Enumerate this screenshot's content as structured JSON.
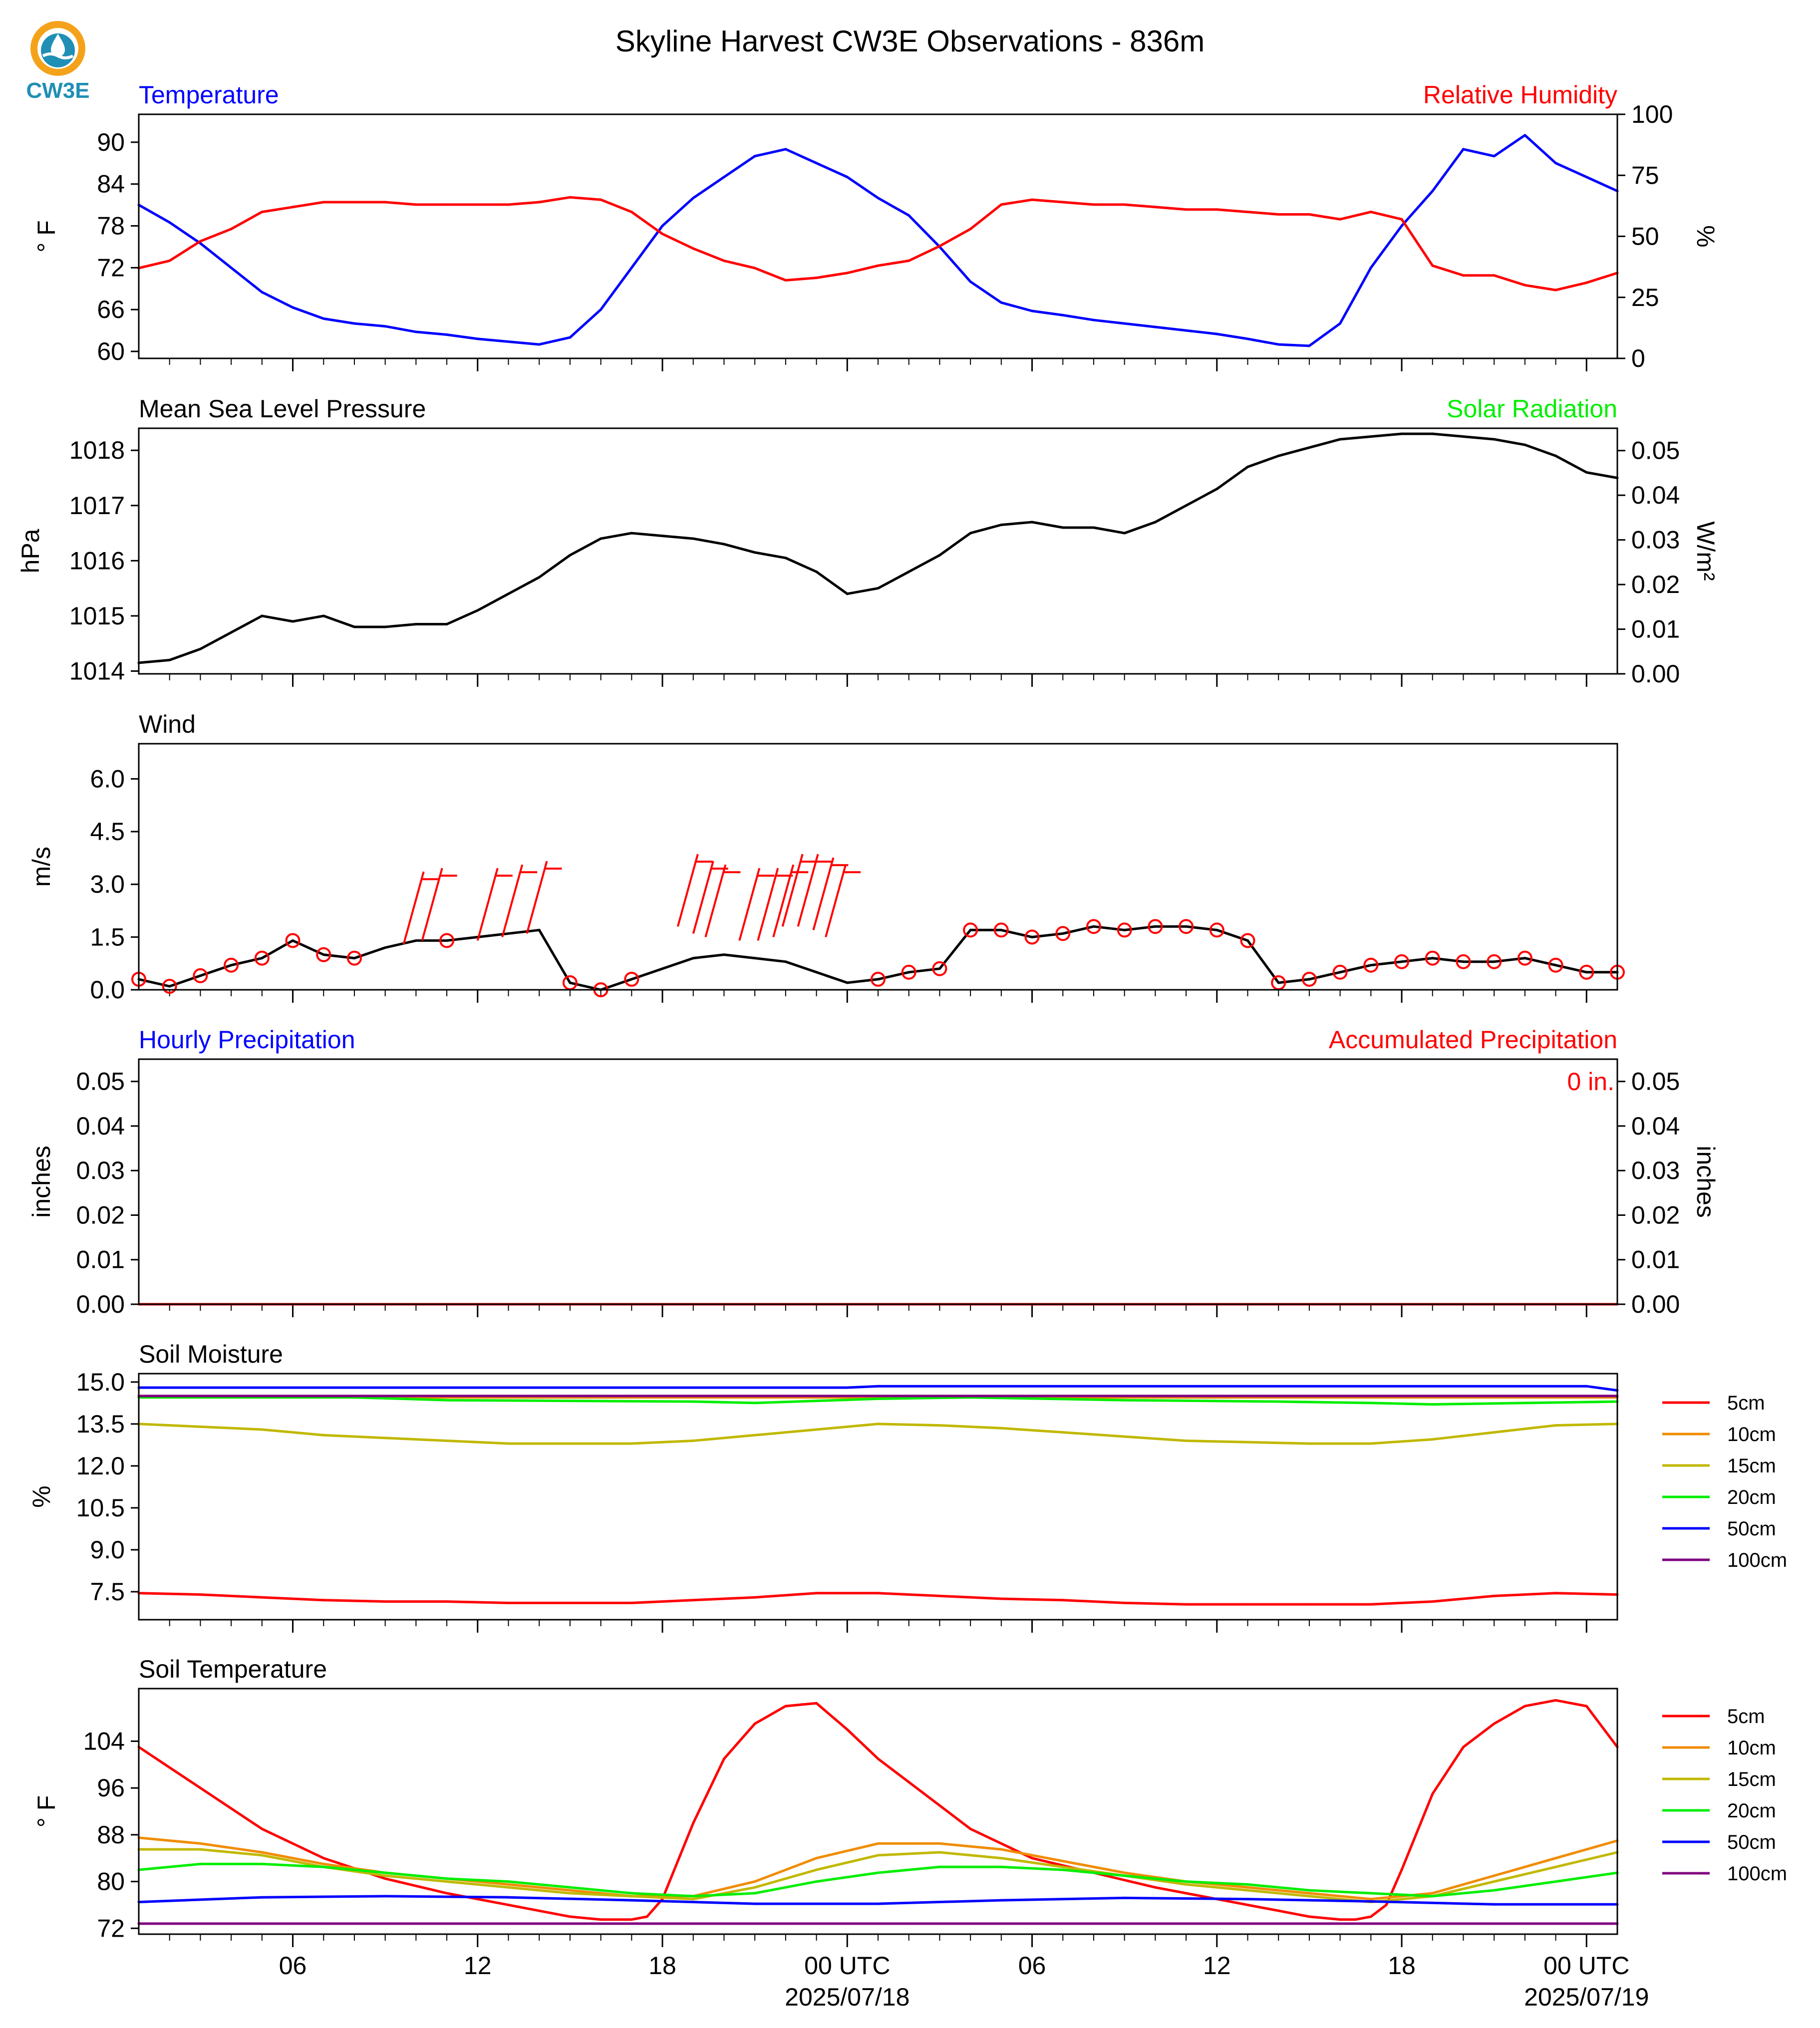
{
  "title": "Skyline Harvest CW3E Observations - 836m",
  "logo": {
    "text": "CW3E",
    "colors": {
      "orange": "#f5a21b",
      "teal": "#1f8fb5"
    }
  },
  "colors": {
    "temperature": "#0000ff",
    "humidity": "#ff0000",
    "solar": "#00ee00",
    "black": "#000000",
    "accum": "#ff0000",
    "hourly": "#0000ff"
  },
  "time_axis": {
    "x_range": [
      "2025-07-17T01:00Z",
      "2025-07-19T01:00Z"
    ],
    "tick_labels": [
      "06",
      "12",
      "18",
      "00 UTC",
      "06",
      "12",
      "18",
      "00 UTC"
    ],
    "date_labels": [
      "2025/07/18",
      "2025/07/19"
    ]
  },
  "chart_data": [
    {
      "id": "temp_rh",
      "type": "line",
      "left_title": "Temperature",
      "right_title": "Relative Humidity",
      "ylabel": "° F",
      "ylabel_right": "%",
      "ylim": [
        59,
        94
      ],
      "ylim_right": [
        0,
        100
      ],
      "y_ticks": [
        "60",
        "66",
        "72",
        "78",
        "84",
        "90"
      ],
      "y_ticks_right": [
        "0",
        "25",
        "50",
        "75",
        "100"
      ],
      "series": [
        {
          "name": "Temperature",
          "color": "#0000ff",
          "axis": "left",
          "x": [
            1,
            2,
            3,
            4,
            5,
            6,
            7,
            8,
            9,
            10,
            11,
            12,
            13,
            14,
            15,
            16,
            17,
            18,
            19,
            20,
            21,
            22,
            23,
            24,
            25,
            26,
            27,
            28,
            29,
            30,
            31,
            32,
            33,
            34,
            35,
            36,
            37,
            38,
            39,
            40,
            41,
            42,
            43,
            44,
            45,
            46,
            47,
            48,
            49
          ],
          "y": [
            81,
            78.5,
            75.5,
            72,
            68.5,
            66.3,
            64.7,
            64,
            63.6,
            62.8,
            62.4,
            61.8,
            61.4,
            61,
            62,
            66,
            72,
            78,
            82,
            85,
            88,
            89,
            87,
            85,
            82,
            79.5,
            75,
            70,
            67,
            65.8,
            65.2,
            64.5,
            64,
            63.5,
            63,
            62.5,
            61.8,
            61,
            60.8,
            64,
            72,
            78,
            83,
            89,
            88,
            91,
            87,
            85,
            83
          ]
        },
        {
          "name": "Relative Humidity",
          "color": "#ff0000",
          "axis": "right",
          "x": [
            1,
            2,
            3,
            4,
            5,
            6,
            7,
            8,
            9,
            10,
            11,
            12,
            13,
            14,
            15,
            16,
            17,
            18,
            19,
            20,
            21,
            22,
            23,
            24,
            25,
            26,
            27,
            28,
            29,
            30,
            31,
            32,
            33,
            34,
            35,
            36,
            37,
            38,
            39,
            40,
            41,
            42,
            43,
            44,
            45,
            46,
            47,
            48,
            49
          ],
          "y": [
            37,
            40,
            48,
            53,
            60,
            62,
            64,
            64,
            64,
            63,
            63,
            63,
            63,
            64,
            66,
            65,
            60,
            51,
            45,
            40,
            37,
            32,
            33,
            35,
            38,
            40,
            46,
            53,
            63,
            65,
            64,
            63,
            63,
            62,
            61,
            61,
            60,
            59,
            59,
            57,
            60,
            57,
            38,
            34,
            34,
            30,
            28,
            31,
            35
          ]
        }
      ]
    },
    {
      "id": "pressure",
      "type": "line",
      "left_title": "Mean Sea Level Pressure",
      "right_title": "Solar Radiation",
      "ylabel": "hPa",
      "ylabel_right": "W/m²",
      "ylim": [
        1013.95,
        1018.4
      ],
      "ylim_right": [
        0,
        0.055
      ],
      "y_ticks": [
        "1014",
        "1015",
        "1016",
        "1017",
        "1018"
      ],
      "y_ticks_right": [
        "0.00",
        "0.01",
        "0.02",
        "0.03",
        "0.04",
        "0.05"
      ],
      "series": [
        {
          "name": "Mean Sea Level Pressure",
          "color": "#000000",
          "axis": "left",
          "x": [
            1,
            2,
            3,
            4,
            5,
            6,
            7,
            8,
            9,
            10,
            11,
            12,
            13,
            14,
            15,
            16,
            17,
            18,
            19,
            20,
            21,
            22,
            23,
            24,
            25,
            26,
            27,
            28,
            29,
            30,
            31,
            32,
            33,
            34,
            35,
            36,
            37,
            38,
            39,
            40,
            41,
            42,
            43,
            44,
            45,
            46,
            47,
            48,
            49
          ],
          "y": [
            1014.15,
            1014.2,
            1014.4,
            1014.7,
            1015,
            1014.9,
            1015,
            1014.8,
            1014.8,
            1014.85,
            1014.85,
            1015.1,
            1015.4,
            1015.7,
            1016.1,
            1016.4,
            1016.5,
            1016.45,
            1016.4,
            1016.3,
            1016.15,
            1016.05,
            1015.8,
            1015.4,
            1015.5,
            1015.8,
            1016.1,
            1016.5,
            1016.65,
            1016.7,
            1016.6,
            1016.6,
            1016.5,
            1016.7,
            1017,
            1017.3,
            1017.7,
            1017.9,
            1018.05,
            1018.2,
            1018.25,
            1018.3,
            1018.3,
            1018.25,
            1018.2,
            1018.1,
            1017.9,
            1017.6,
            1017.5
          ]
        }
      ]
    },
    {
      "id": "wind",
      "type": "line",
      "left_title": "Wind",
      "ylabel": "m/s",
      "ylim": [
        0,
        7
      ],
      "y_ticks": [
        "0.0",
        "1.5",
        "3.0",
        "4.5",
        "6.0"
      ],
      "series": [
        {
          "name": "Wind",
          "color": "#000000",
          "axis": "left",
          "x": [
            1,
            2,
            3,
            4,
            5,
            6,
            7,
            8,
            9,
            10,
            11,
            12,
            13,
            14,
            15,
            16,
            17,
            18,
            19,
            20,
            21,
            22,
            23,
            24,
            25,
            26,
            27,
            28,
            29,
            30,
            31,
            32,
            33,
            34,
            35,
            36,
            37,
            38,
            39,
            40,
            41,
            42,
            43,
            44,
            45,
            46,
            47,
            48,
            49
          ],
          "y": [
            0.3,
            0.1,
            0.4,
            0.7,
            0.9,
            1.4,
            1.0,
            0.9,
            1.2,
            1.4,
            1.4,
            1.5,
            1.6,
            1.7,
            0.2,
            0,
            0.3,
            0.6,
            0.9,
            1.0,
            0.9,
            0.8,
            0.5,
            0.2,
            0.3,
            0.5,
            0.6,
            1.7,
            1.7,
            1.5,
            1.6,
            1.8,
            1.7,
            1.8,
            1.8,
            1.7,
            1.4,
            0.2,
            0.3,
            0.5,
            0.7,
            0.8,
            0.9,
            0.8,
            0.8,
            0.9,
            0.7,
            0.5,
            0.5
          ]
        }
      ],
      "barbs": {
        "x": [
          9.6,
          10.2,
          12,
          12.8,
          13.6,
          18.5,
          19,
          19.4,
          20.5,
          21.1,
          21.6,
          21.9,
          22.4,
          22.9,
          23.3
        ],
        "y": [
          1.3,
          1.4,
          1.4,
          1.5,
          1.6,
          1.8,
          1.6,
          1.5,
          1.4,
          1.4,
          1.5,
          1.8,
          1.8,
          1.7,
          1.5
        ]
      }
    },
    {
      "id": "precip",
      "type": "line",
      "left_title": "Hourly Precipitation",
      "right_title": "Accumulated Precipitation",
      "ylabel": "inches",
      "ylabel_right": "inches",
      "ylim": [
        0,
        0.055
      ],
      "ylim_right": [
        0,
        0.055
      ],
      "y_ticks": [
        "0.00",
        "0.01",
        "0.02",
        "0.03",
        "0.04",
        "0.05"
      ],
      "y_ticks_right": [
        "0.00",
        "0.01",
        "0.02",
        "0.03",
        "0.04",
        "0.05"
      ],
      "annotation": "0 in.",
      "series": [
        {
          "name": "Accumulated Precipitation",
          "color": "#ff0000",
          "axis": "left",
          "x": [
            1,
            49
          ],
          "y": [
            0,
            0
          ]
        }
      ]
    },
    {
      "id": "soil_moisture",
      "type": "line",
      "left_title": "Soil Moisture",
      "ylabel": "%",
      "ylim": [
        6.5,
        15.3
      ],
      "y_ticks": [
        "7.5",
        "9.0",
        "10.5",
        "12.0",
        "13.5",
        "15.0"
      ],
      "legend": [
        "5cm",
        "10cm",
        "15cm",
        "20cm",
        "50cm",
        "100cm"
      ],
      "series": [
        {
          "name": "5cm",
          "color": "#ff0000",
          "x": [
            1,
            3,
            5,
            7,
            9,
            11,
            13,
            15,
            17,
            19,
            21,
            23,
            25,
            27,
            29,
            31,
            33,
            35,
            37,
            39,
            41,
            43,
            45,
            47,
            49
          ],
          "y": [
            7.45,
            7.4,
            7.3,
            7.2,
            7.15,
            7.15,
            7.1,
            7.1,
            7.1,
            7.2,
            7.3,
            7.45,
            7.45,
            7.35,
            7.25,
            7.2,
            7.1,
            7.05,
            7.05,
            7.05,
            7.05,
            7.15,
            7.35,
            7.45,
            7.4
          ]
        },
        {
          "name": "10cm",
          "color": "#f08c00",
          "x": [
            1,
            49
          ],
          "y": [
            14.45,
            14.45
          ]
        },
        {
          "name": "15cm",
          "color": "#c0b800",
          "x": [
            1,
            3,
            5,
            7,
            9,
            11,
            13,
            15,
            17,
            19,
            21,
            23,
            25,
            27,
            29,
            31,
            33,
            35,
            37,
            39,
            41,
            43,
            45,
            47,
            49
          ],
          "y": [
            13.5,
            13.4,
            13.3,
            13.1,
            13.0,
            12.9,
            12.8,
            12.8,
            12.8,
            12.9,
            13.1,
            13.3,
            13.5,
            13.45,
            13.35,
            13.2,
            13.05,
            12.9,
            12.85,
            12.8,
            12.8,
            12.95,
            13.2,
            13.45,
            13.5
          ]
        },
        {
          "name": "20cm",
          "color": "#00ee00",
          "x": [
            1,
            8,
            11,
            19,
            21,
            25,
            28,
            33,
            38,
            41,
            43,
            49
          ],
          "y": [
            14.45,
            14.45,
            14.35,
            14.3,
            14.25,
            14.4,
            14.45,
            14.35,
            14.3,
            14.25,
            14.2,
            14.3
          ]
        },
        {
          "name": "50cm",
          "color": "#0000ff",
          "x": [
            1,
            24,
            25,
            48,
            49
          ],
          "y": [
            14.8,
            14.8,
            14.85,
            14.85,
            14.7
          ]
        },
        {
          "name": "100cm",
          "color": "#800080",
          "x": [
            1,
            49
          ],
          "y": [
            14.5,
            14.5
          ]
        }
      ]
    },
    {
      "id": "soil_temperature",
      "type": "line",
      "left_title": "Soil Temperature",
      "ylabel": "° F",
      "ylim": [
        71,
        113
      ],
      "y_ticks": [
        "72",
        "80",
        "88",
        "96",
        "104"
      ],
      "legend": [
        "5cm",
        "10cm",
        "15cm",
        "20cm",
        "50cm",
        "100cm"
      ],
      "series": [
        {
          "name": "5cm",
          "color": "#ff0000",
          "x": [
            1,
            3,
            5,
            7,
            9,
            11,
            13,
            15,
            16,
            17,
            17.5,
            18,
            19,
            20,
            21,
            22,
            23,
            24,
            25,
            26,
            28,
            30,
            32,
            34,
            36,
            38,
            39,
            40,
            40.5,
            41,
            41.5,
            42,
            43,
            44,
            45,
            46,
            47,
            48,
            49
          ],
          "y": [
            103,
            96,
            89,
            84,
            80.5,
            78,
            76,
            74,
            73.5,
            73.5,
            74,
            77,
            90,
            101,
            107,
            110,
            110.5,
            106,
            101,
            97,
            89,
            84,
            81.5,
            79,
            77,
            75,
            74,
            73.5,
            73.5,
            74,
            76,
            82,
            95,
            103,
            107,
            110,
            111,
            110,
            103
          ]
        },
        {
          "name": "10cm",
          "color": "#f08c00",
          "x": [
            1,
            3,
            5,
            7,
            9,
            11,
            13,
            15,
            17,
            19,
            21,
            23,
            25,
            27,
            29,
            31,
            33,
            35,
            37,
            39,
            41,
            43,
            45,
            47,
            49
          ],
          "y": [
            87.5,
            86.5,
            85,
            83,
            81.5,
            80.5,
            79.5,
            78.5,
            77.5,
            77.5,
            80,
            84,
            86.5,
            86.5,
            85.5,
            83.5,
            81.5,
            80,
            79,
            78,
            77,
            78,
            81,
            84,
            87
          ]
        },
        {
          "name": "15cm",
          "color": "#c0b800",
          "x": [
            1,
            3,
            5,
            7,
            9,
            11,
            13,
            15,
            17,
            19,
            21,
            23,
            25,
            27,
            29,
            31,
            33,
            35,
            37,
            39,
            41,
            43,
            45,
            47,
            49
          ],
          "y": [
            85.5,
            85.5,
            84.5,
            82.5,
            81,
            80,
            79,
            78,
            77.5,
            77,
            79,
            82,
            84.5,
            85,
            84,
            82.5,
            81,
            79.5,
            78.5,
            77.5,
            76.5,
            77.5,
            80,
            82.5,
            85
          ]
        },
        {
          "name": "20cm",
          "color": "#00ee00",
          "x": [
            1,
            3,
            5,
            7,
            9,
            11,
            13,
            15,
            17,
            19,
            21,
            23,
            25,
            27,
            29,
            31,
            33,
            35,
            37,
            39,
            41,
            43,
            45,
            47,
            49
          ],
          "y": [
            82,
            83,
            83,
            82.5,
            81.5,
            80.5,
            80,
            79,
            78,
            77.5,
            78,
            80,
            81.5,
            82.5,
            82.5,
            82,
            81,
            80,
            79.5,
            78.5,
            78,
            77.5,
            78.5,
            80,
            81.5
          ]
        },
        {
          "name": "50cm",
          "color": "#0000ff",
          "x": [
            1,
            5,
            9,
            13,
            17,
            21,
            25,
            29,
            33,
            37,
            41,
            45,
            49
          ],
          "y": [
            76.5,
            77.3,
            77.5,
            77.3,
            76.8,
            76.2,
            76.2,
            76.8,
            77.2,
            77,
            76.6,
            76.1,
            76.1
          ]
        },
        {
          "name": "100cm",
          "color": "#800080",
          "x": [
            1,
            49
          ],
          "y": [
            72.8,
            72.8
          ]
        }
      ]
    }
  ]
}
